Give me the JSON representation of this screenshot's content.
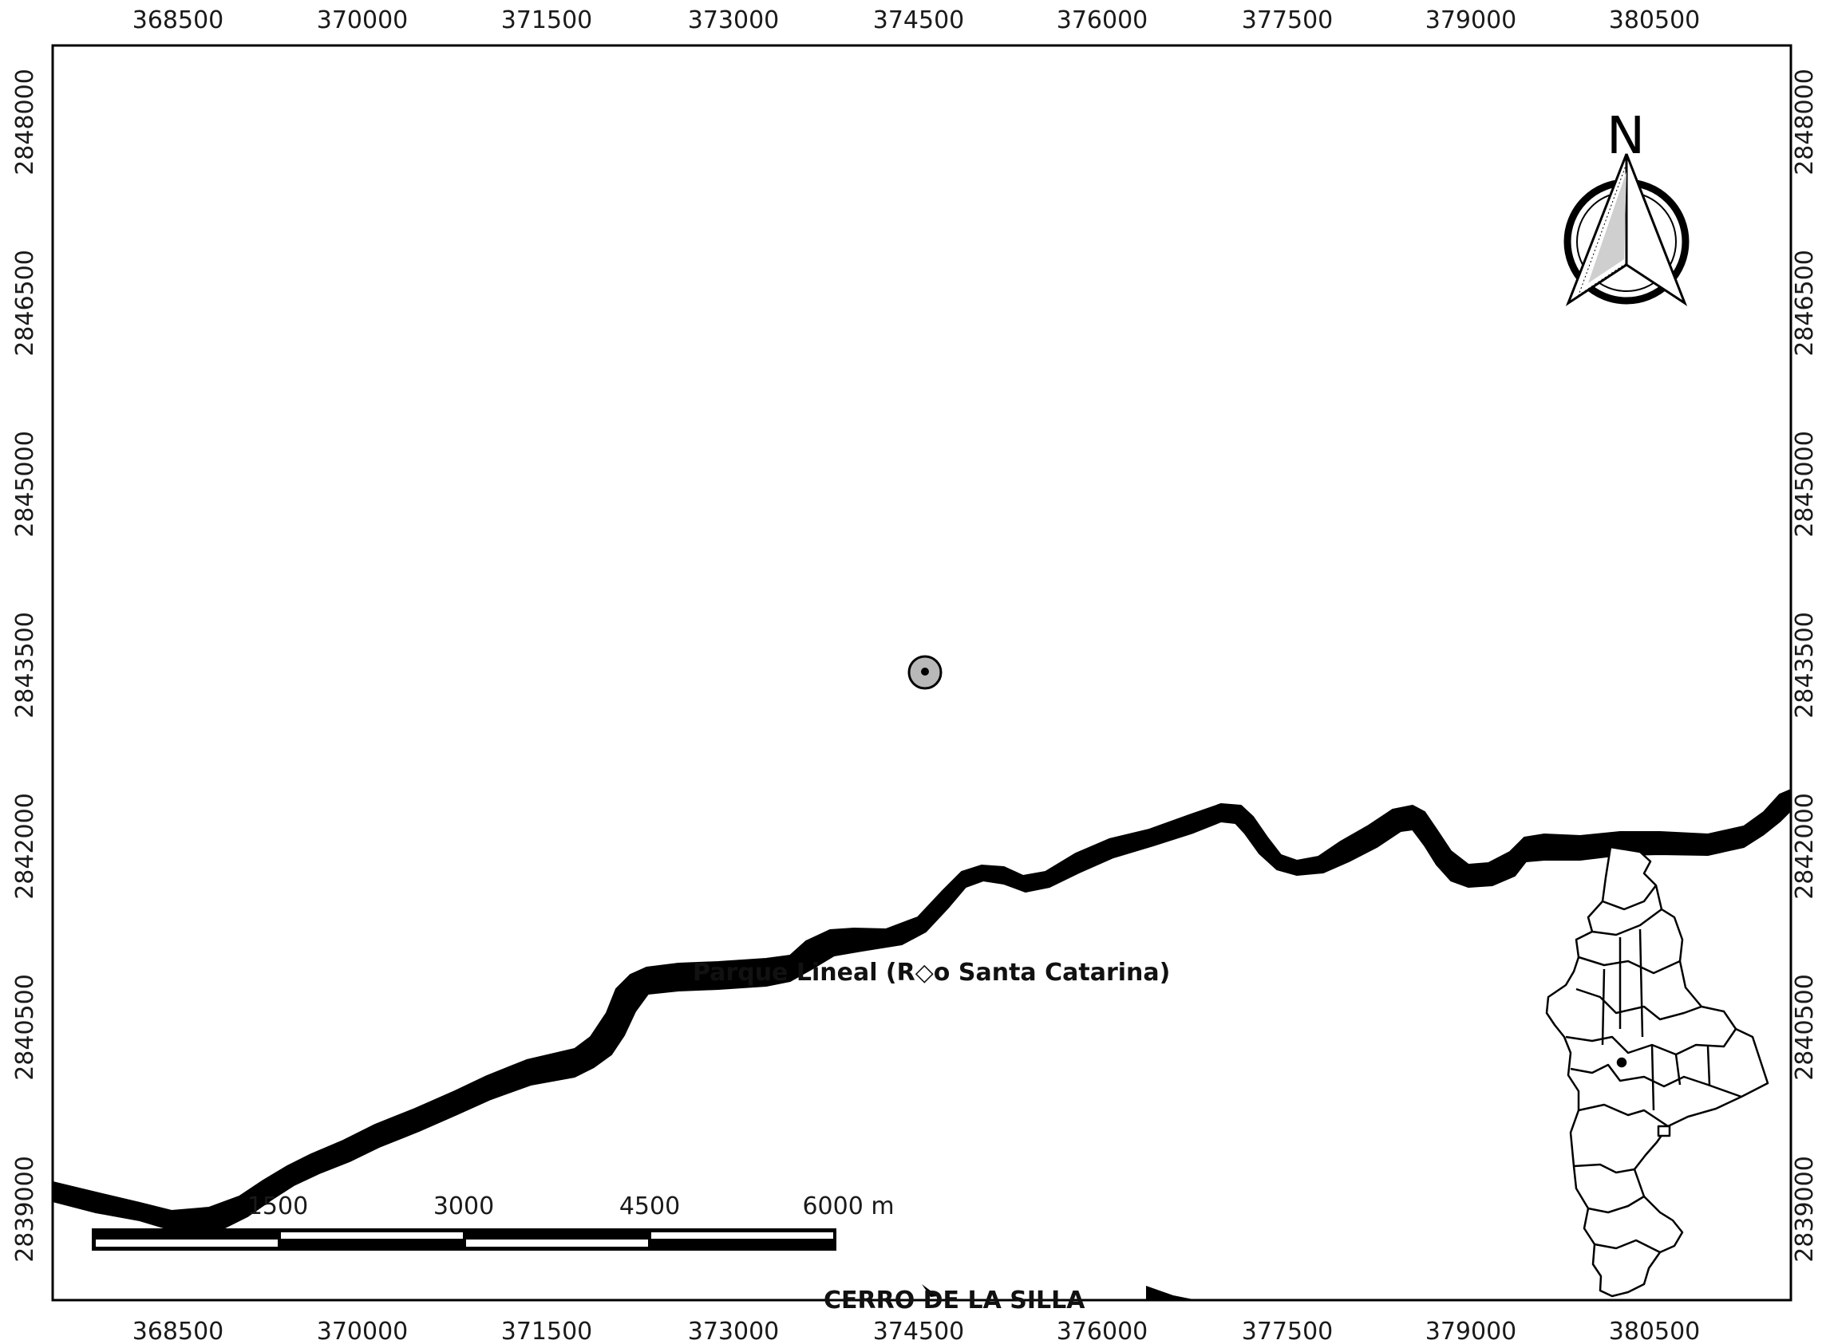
{
  "map": {
    "x_ticks": [
      "368500",
      "370000",
      "371500",
      "373000",
      "374500",
      "376000",
      "377500",
      "379000",
      "380500"
    ],
    "y_ticks": [
      "2848000",
      "2846500",
      "2845000",
      "2843500",
      "2842000",
      "2840500",
      "2839000"
    ],
    "labels": {
      "river": "Parque Lineal (R◇o Santa Catarina)",
      "cerro": "CERRO DE LA SILLA"
    },
    "scale_bar": {
      "labels": [
        "1500",
        "3000",
        "4500",
        "6000 m"
      ]
    },
    "north_arrow": {
      "letter": "N"
    },
    "icons": [
      "north-arrow-icon",
      "locator-inset-map",
      "point-feature-marker"
    ],
    "colors": {
      "river": "#000000",
      "frame": "#000000",
      "point_fill": "#b8b8b8"
    }
  }
}
